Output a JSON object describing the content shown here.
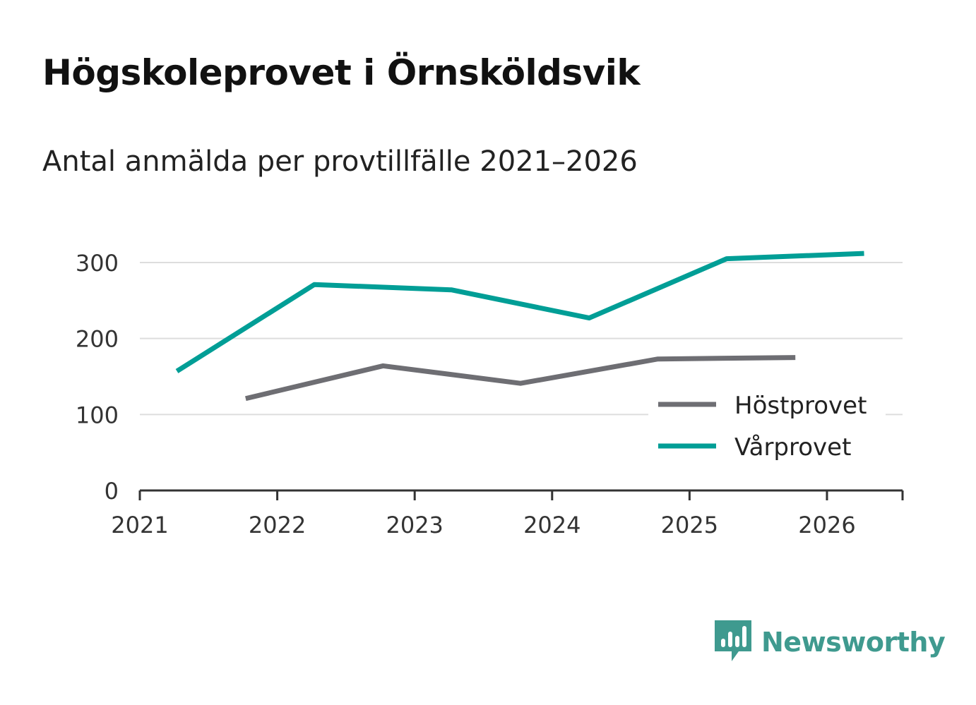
{
  "chart_data": {
    "type": "line",
    "title": "Högskoleprovet i Örnsköldsvik",
    "subtitle": "Antal anmälda per provtillfälle 2021–2026",
    "xlabel": "",
    "ylabel": "",
    "xlim": [
      2021,
      2026.55
    ],
    "ylim": [
      0,
      300
    ],
    "x_ticks": [
      2021,
      2022,
      2023,
      2024,
      2025,
      2026
    ],
    "y_ticks": [
      0,
      100,
      200,
      300
    ],
    "grid": true,
    "legend_position": "bottom-right",
    "series": [
      {
        "name": "Höstprovet",
        "color": "#6e6e73",
        "x": [
          2021.77,
          2022.77,
          2023.77,
          2024.77,
          2025.77
        ],
        "values": [
          121,
          164,
          141,
          173,
          175
        ]
      },
      {
        "name": "Vårprovet",
        "color": "#009e96",
        "x": [
          2021.27,
          2022.27,
          2023.27,
          2024.27,
          2025.27,
          2026.27
        ],
        "values": [
          157,
          271,
          264,
          227,
          305,
          312
        ]
      }
    ]
  },
  "branding": {
    "name": "Newsworthy",
    "icon": "newsworthy-logo-icon",
    "color": "#3f9a8f"
  }
}
